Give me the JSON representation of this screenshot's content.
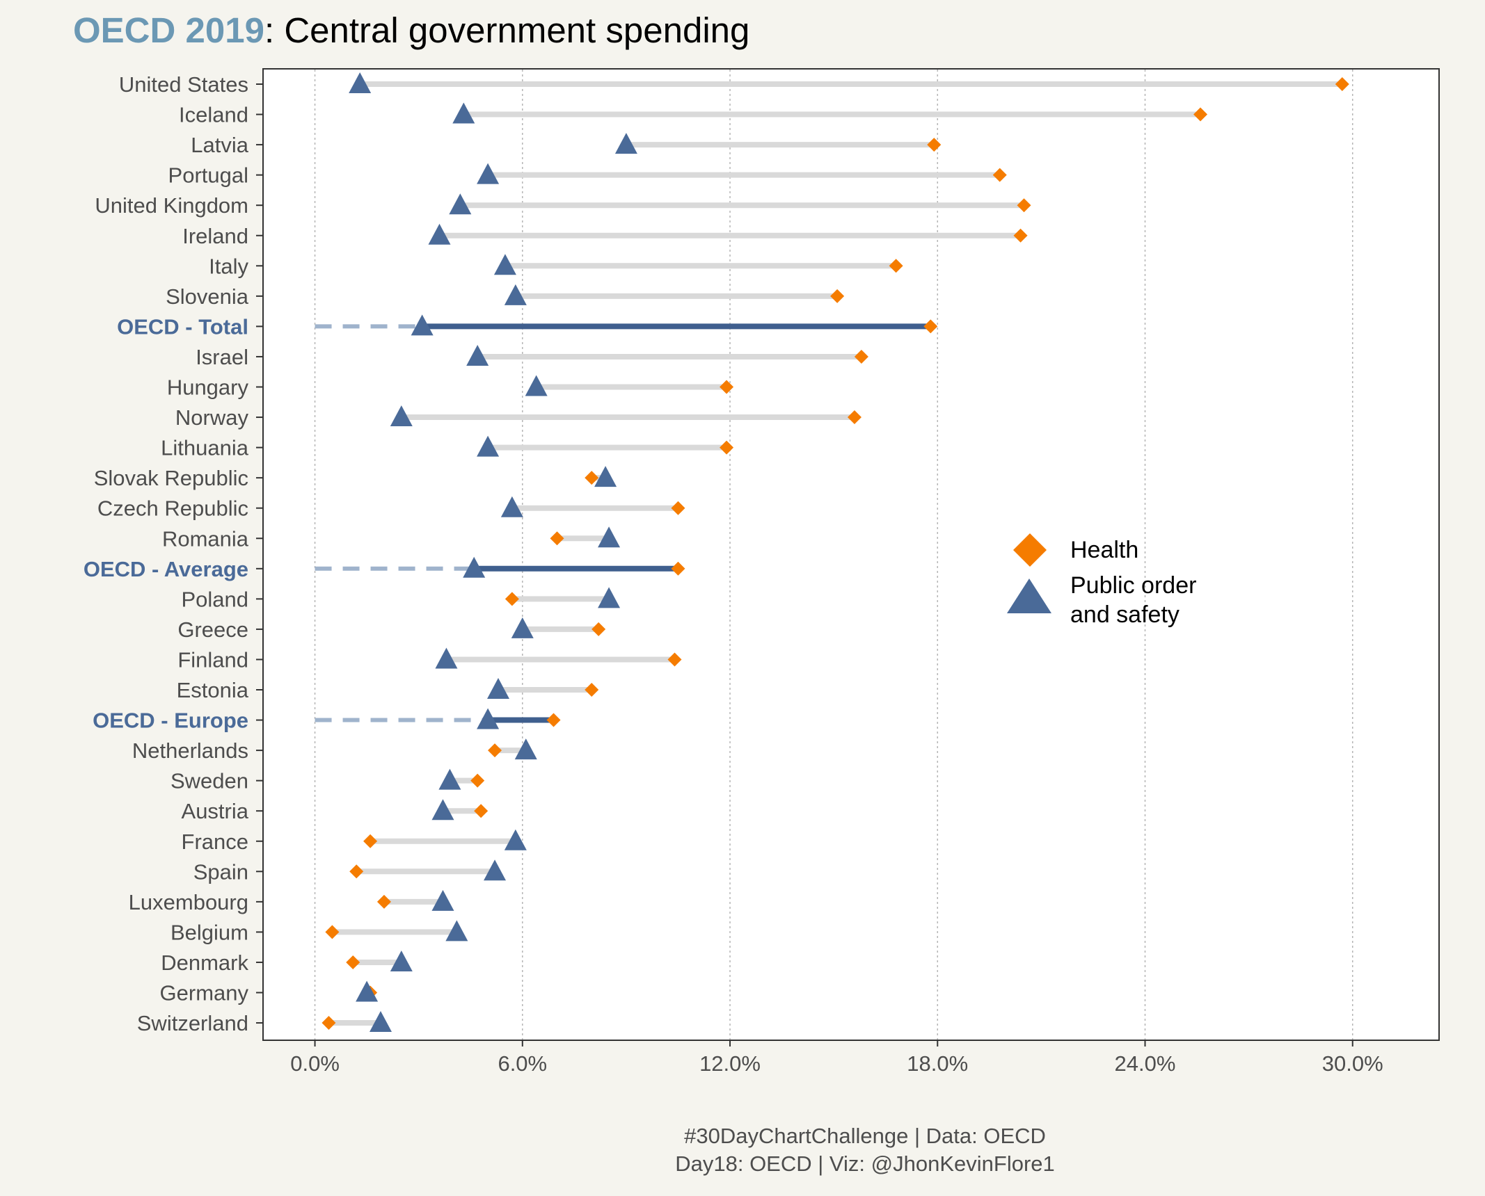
{
  "title": {
    "highlight": "OECD 2019",
    "rest": ": Central government spending"
  },
  "caption": {
    "line1": "#30DayChartChallenge | Data: OECD",
    "line2": "Day18: OECD | Viz: @JhonKevinFlore1"
  },
  "colors": {
    "health": "#f57c00",
    "safety": "#4a6a98",
    "highlight_segment": "#3f5f8e",
    "dashed": "#9fb3cc",
    "connector": "#d9d9d9",
    "title_highlight": "#6b98b4",
    "label_highlight": "#4a6a98"
  },
  "chart_data": {
    "type": "dumbbell",
    "x_ticks": [
      0,
      6,
      12,
      18,
      24,
      30
    ],
    "x_tick_labels": [
      "0.0%",
      "6.0%",
      "12.0%",
      "18.0%",
      "24.0%",
      "30.0%"
    ],
    "xlim": [
      -1.5,
      32.5
    ],
    "grid": "vertical dotted",
    "legend": {
      "position": "inside-right",
      "entries": [
        {
          "key": "health",
          "label": "Health"
        },
        {
          "key": "safety",
          "label_line1": "Public order",
          "label_line2": "and safety"
        }
      ]
    },
    "series": [
      {
        "name": "Health",
        "key": "health",
        "marker": "diamond"
      },
      {
        "name": "Public order and safety",
        "key": "safety",
        "marker": "triangle"
      }
    ],
    "rows": [
      {
        "country": "United States",
        "health": 29.7,
        "safety": 1.3
      },
      {
        "country": "Iceland",
        "health": 25.6,
        "safety": 4.3
      },
      {
        "country": "Latvia",
        "health": 17.9,
        "safety": 9.0
      },
      {
        "country": "Portugal",
        "health": 19.8,
        "safety": 5.0
      },
      {
        "country": "United Kingdom",
        "health": 20.5,
        "safety": 4.2
      },
      {
        "country": "Ireland",
        "health": 20.4,
        "safety": 3.6
      },
      {
        "country": "Italy",
        "health": 16.8,
        "safety": 5.5
      },
      {
        "country": "Slovenia",
        "health": 15.1,
        "safety": 5.8
      },
      {
        "country": "OECD - Total",
        "health": 17.8,
        "safety": 3.1,
        "aggregate": true
      },
      {
        "country": "Israel",
        "health": 15.8,
        "safety": 4.7
      },
      {
        "country": "Hungary",
        "health": 11.9,
        "safety": 6.4
      },
      {
        "country": "Norway",
        "health": 15.6,
        "safety": 2.5
      },
      {
        "country": "Lithuania",
        "health": 11.9,
        "safety": 5.0
      },
      {
        "country": "Slovak Republic",
        "health": 8.0,
        "safety": 8.4
      },
      {
        "country": "Czech Republic",
        "health": 10.5,
        "safety": 5.7
      },
      {
        "country": "Romania",
        "health": 7.0,
        "safety": 8.5
      },
      {
        "country": "OECD - Average",
        "health": 10.5,
        "safety": 4.6,
        "aggregate": true
      },
      {
        "country": "Poland",
        "health": 5.7,
        "safety": 8.5
      },
      {
        "country": "Greece",
        "health": 8.2,
        "safety": 6.0
      },
      {
        "country": "Finland",
        "health": 10.4,
        "safety": 3.8
      },
      {
        "country": "Estonia",
        "health": 8.0,
        "safety": 5.3
      },
      {
        "country": "OECD - Europe",
        "health": 6.9,
        "safety": 5.0,
        "aggregate": true
      },
      {
        "country": "Netherlands",
        "health": 5.2,
        "safety": 6.1
      },
      {
        "country": "Sweden",
        "health": 4.7,
        "safety": 3.9
      },
      {
        "country": "Austria",
        "health": 4.8,
        "safety": 3.7
      },
      {
        "country": "France",
        "health": 1.6,
        "safety": 5.8
      },
      {
        "country": "Spain",
        "health": 1.2,
        "safety": 5.2
      },
      {
        "country": "Luxembourg",
        "health": 2.0,
        "safety": 3.7
      },
      {
        "country": "Belgium",
        "health": 0.5,
        "safety": 4.1
      },
      {
        "country": "Denmark",
        "health": 1.1,
        "safety": 2.5
      },
      {
        "country": "Germany",
        "health": 1.6,
        "safety": 1.5
      },
      {
        "country": "Switzerland",
        "health": 0.4,
        "safety": 1.9
      }
    ]
  }
}
